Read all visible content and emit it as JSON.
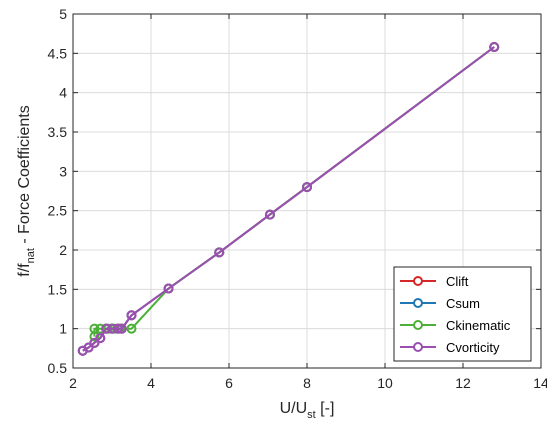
{
  "chart_data": {
    "type": "line",
    "xlabel": {
      "main": "U/U",
      "sub": "st",
      "suffix": " [-]"
    },
    "ylabel": {
      "main": "f/f",
      "sub": "nat",
      "suffix": " - Force Coefficients"
    },
    "xlim": [
      2,
      14
    ],
    "ylim": [
      0.5,
      5
    ],
    "xticks": [
      2,
      4,
      6,
      8,
      10,
      12,
      14
    ],
    "yticks": [
      0.5,
      1,
      1.5,
      2,
      2.5,
      3,
      3.5,
      4,
      4.5,
      5
    ],
    "xtick_labels": [
      "2",
      "4",
      "6",
      "8",
      "10",
      "12",
      "14"
    ],
    "ytick_labels": [
      "0.5",
      "1",
      "1.5",
      "2",
      "2.5",
      "3",
      "3.5",
      "4",
      "4.5",
      "5"
    ],
    "grid": true,
    "legend_position": "bottom-right",
    "marker": "circle",
    "series": [
      {
        "name": "Clift",
        "color": "#d62728",
        "x": [
          2.25,
          2.4,
          2.55,
          2.7,
          2.85,
          3.0,
          3.15,
          3.25,
          3.5,
          4.45,
          5.75,
          7.05,
          8.0,
          12.8
        ],
        "y": [
          0.72,
          0.76,
          0.82,
          0.88,
          1.0,
          1.0,
          1.0,
          1.0,
          1.17,
          1.51,
          1.97,
          2.45,
          2.8,
          4.58
        ]
      },
      {
        "name": "Csum",
        "color": "#1f77b4",
        "x": [
          2.25,
          2.4,
          2.55,
          2.7,
          2.85,
          3.0,
          3.15,
          3.25,
          3.5,
          4.45,
          5.75,
          7.05,
          8.0,
          12.8
        ],
        "y": [
          0.72,
          0.76,
          0.82,
          0.88,
          1.0,
          1.0,
          1.0,
          1.0,
          1.17,
          1.51,
          1.97,
          2.45,
          2.8,
          4.58
        ]
      },
      {
        "name": "Ckinematic",
        "color": "#4caf37",
        "x": [
          2.55,
          2.55,
          2.7,
          2.9,
          3.05,
          3.2,
          3.5,
          4.45,
          5.75,
          7.05,
          8.0,
          12.8
        ],
        "y": [
          0.9,
          1.0,
          1.0,
          1.0,
          1.0,
          1.0,
          1.0,
          1.51,
          1.97,
          2.45,
          2.8,
          4.58
        ]
      },
      {
        "name": "Cvorticity",
        "color": "#9b4fb0",
        "x": [
          2.25,
          2.4,
          2.55,
          2.7,
          2.85,
          3.0,
          3.15,
          3.25,
          3.5,
          4.45,
          5.75,
          7.05,
          8.0,
          12.8
        ],
        "y": [
          0.72,
          0.76,
          0.82,
          0.88,
          1.0,
          1.0,
          1.0,
          1.0,
          1.17,
          1.51,
          1.97,
          2.45,
          2.8,
          4.58
        ]
      }
    ]
  }
}
